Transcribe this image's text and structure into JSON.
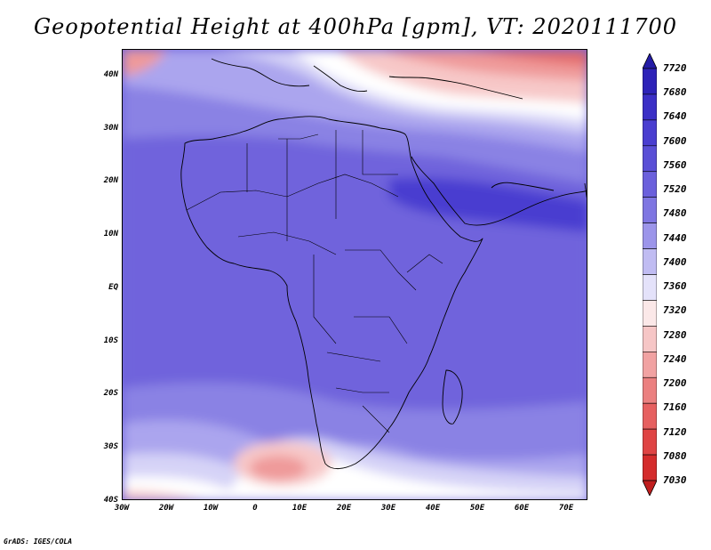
{
  "title": "Geopotential Height at 400hPa [gpm], VT: 2020111700",
  "credit": "GrADS: IGES/COLA",
  "map": {
    "background_fill": "#6f64dc",
    "lat_labels": [
      "40N",
      "30N",
      "20N",
      "10N",
      "EQ",
      "10S",
      "20S",
      "30S",
      "40S"
    ],
    "lon_labels": [
      "30W",
      "20W",
      "10W",
      "0",
      "10E",
      "20E",
      "30E",
      "40E",
      "50E",
      "60E",
      "70E"
    ]
  },
  "colorbar": {
    "labels": [
      "7720",
      "7680",
      "7640",
      "7600",
      "7560",
      "7520",
      "7480",
      "7440",
      "7400",
      "7360",
      "7320",
      "7280",
      "7240",
      "7200",
      "7160",
      "7120",
      "7080",
      "7030"
    ],
    "colors": [
      "#241ca6",
      "#2d22b8",
      "#3b2fc6",
      "#4a3ed0",
      "#5a4fd6",
      "#6b60dc",
      "#7f76e2",
      "#9c95ea",
      "#c0bcf2",
      "#e4e2fa",
      "#fbe8e8",
      "#f6c6c6",
      "#f1a2a2",
      "#eb8080",
      "#e66060",
      "#df4444",
      "#d42c2c",
      "#c01e1e"
    ]
  }
}
